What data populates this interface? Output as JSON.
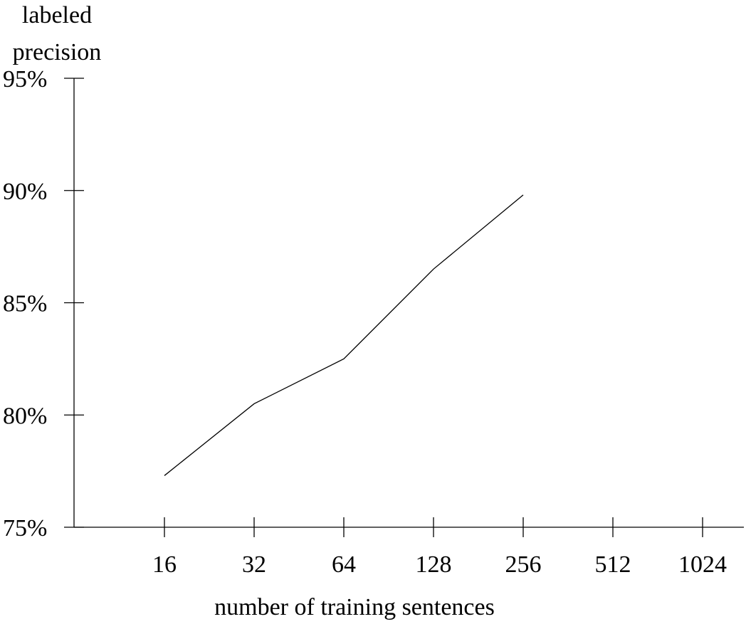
{
  "chart_data": {
    "type": "line",
    "title": "",
    "xlabel": "number of training sentences",
    "ylabel": [
      "labeled",
      "precision"
    ],
    "x_scale": "log2",
    "categories": [
      "16",
      "32",
      "64",
      "128",
      "256",
      "512",
      "1024"
    ],
    "x": [
      16,
      32,
      64,
      128,
      256
    ],
    "series": [
      {
        "values": [
          77.3,
          80.5,
          82.5,
          86.5,
          89.8
        ]
      }
    ],
    "yticks": [
      "75%",
      "80%",
      "85%",
      "90%",
      "95%"
    ],
    "ytick_values": [
      75,
      80,
      85,
      90,
      95
    ],
    "ylim": [
      75,
      95
    ],
    "xlim": [
      8,
      1024
    ],
    "grid": false,
    "legend": "none",
    "line_color": "#000000"
  }
}
